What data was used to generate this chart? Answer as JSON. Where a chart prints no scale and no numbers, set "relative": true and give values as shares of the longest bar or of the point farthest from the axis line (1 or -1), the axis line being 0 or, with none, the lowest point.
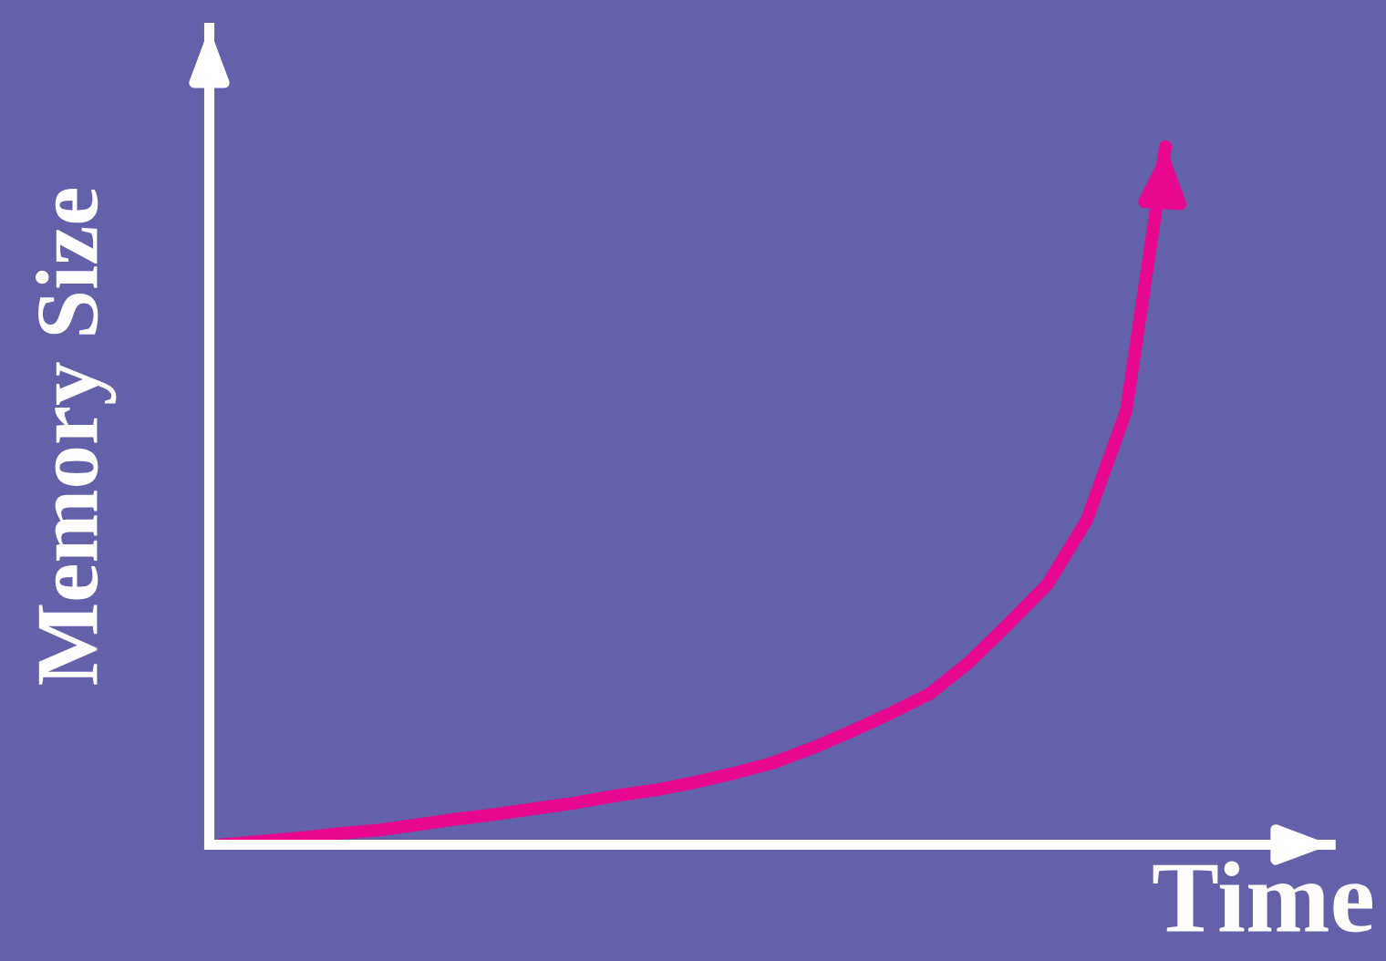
{
  "chart_data": {
    "type": "line",
    "relative": true,
    "xlabel": "Time",
    "ylabel": "Memory Size",
    "categories": [
      null,
      null,
      null,
      null,
      null,
      null,
      null,
      null,
      null,
      null,
      null,
      null,
      null,
      null,
      null,
      null,
      null,
      null,
      null,
      null,
      null,
      null,
      null,
      null,
      null
    ],
    "series": [
      {
        "color": "#e8078f",
        "values": [
          0,
          0.005,
          0.01,
          0.016,
          0.021,
          0.029,
          0.037,
          0.044,
          0.052,
          0.06,
          0.07,
          0.078,
          0.089,
          0.102,
          0.117,
          0.138,
          0.162,
          0.188,
          0.216,
          0.261,
          0.316,
          0.373,
          0.465,
          0.621,
          1
        ]
      }
    ],
    "legend": false,
    "marker": "none",
    "line_style": "solid"
  }
}
